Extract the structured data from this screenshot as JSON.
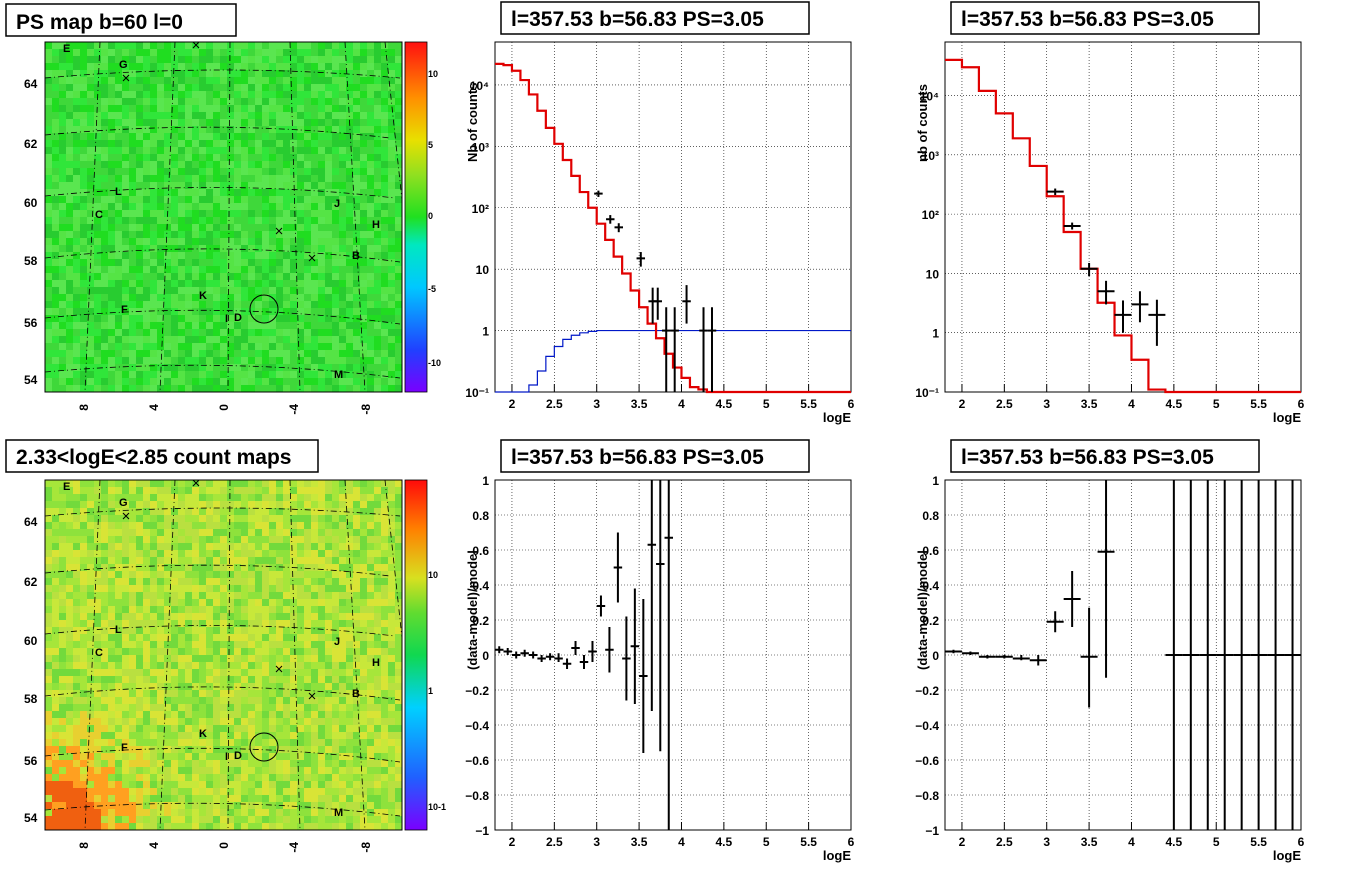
{
  "chart_data": [
    {
      "id": "ps-map",
      "type": "heatmap",
      "title": "PS map b=60 l=0",
      "x_tick_labels": [
        "8",
        "4",
        "0",
        "-4",
        "-8"
      ],
      "y_tick_labels": [
        "54",
        "56",
        "58",
        "60",
        "62",
        "64"
      ],
      "colorbar": {
        "labels": [
          "10",
          "5",
          "0",
          "-5",
          "-10"
        ],
        "range": [
          -12,
          12
        ]
      },
      "sources": [
        "E",
        "G",
        "L",
        "C",
        "J",
        "H",
        "B",
        "K",
        "F",
        "I",
        "D",
        "M"
      ],
      "palette": [
        "#20dd20",
        "#30e63a",
        "#3fd83a",
        "#55e445",
        "#28cc30",
        "#5ae650"
      ]
    },
    {
      "id": "count-map",
      "type": "heatmap",
      "title": "2.33<logE<2.85 count maps",
      "x_tick_labels": [
        "8",
        "4",
        "0",
        "-4",
        "-8"
      ],
      "y_tick_labels": [
        "54",
        "56",
        "58",
        "60",
        "62",
        "64"
      ],
      "colorbar": {
        "labels": [
          "10",
          "1",
          "10-1"
        ],
        "scale": "log"
      },
      "sources": [
        "E",
        "G",
        "L",
        "C",
        "J",
        "H",
        "B",
        "K",
        "F",
        "I",
        "D",
        "M"
      ],
      "palette": [
        "#a6e63a",
        "#8ee23c",
        "#c8e83a",
        "#b9e040",
        "#72da3c",
        "#d9e436"
      ]
    },
    {
      "id": "counts-left",
      "type": "line",
      "title": "l=357.53 b=56.83 PS=3.05",
      "xlabel": "logE",
      "ylabel": "Nb of counts",
      "xlim": [
        1.8,
        6
      ],
      "ylim": [
        0.1,
        50000
      ],
      "yscale": "log",
      "x_ticks": [
        "2",
        "2.5",
        "3",
        "3.5",
        "4",
        "4.5",
        "5",
        "5.5",
        "6"
      ],
      "y_ticks": [
        "10⁻¹",
        "1",
        "10",
        "10²",
        "10³",
        "10⁴"
      ],
      "grid": true,
      "model_color": "#e00000",
      "psf_color": "#0018c8",
      "model_edges": [
        1.8,
        1.9,
        2.0,
        2.1,
        2.2,
        2.3,
        2.4,
        2.5,
        2.6,
        2.7,
        2.8,
        2.9,
        3.0,
        3.1,
        3.2,
        3.3,
        3.4,
        3.5,
        3.6,
        3.7,
        3.8,
        3.9,
        4.0,
        4.1,
        4.2,
        4.3,
        6.0
      ],
      "model_values": [
        22000,
        21000,
        17000,
        12000,
        7000,
        3800,
        2000,
        1100,
        600,
        330,
        180,
        100,
        55,
        30,
        16,
        8.5,
        4.5,
        2.4,
        1.3,
        0.75,
        0.42,
        0.25,
        0.17,
        0.12,
        0.11,
        0.1
      ],
      "psf_edges": [
        1.8,
        2.2,
        2.3,
        2.4,
        2.5,
        2.6,
        2.7,
        2.8,
        2.9,
        3.0,
        3.1,
        6.0
      ],
      "psf_values": [
        0.1,
        0.13,
        0.22,
        0.38,
        0.55,
        0.72,
        0.84,
        0.92,
        0.97,
        1.0,
        1.0
      ],
      "data_points": [
        {
          "x": 3.02,
          "y": 170,
          "ylo": 150,
          "yhi": 190
        },
        {
          "x": 3.16,
          "y": 65,
          "ylo": 55,
          "yhi": 76
        },
        {
          "x": 3.26,
          "y": 48,
          "ylo": 40,
          "yhi": 56
        },
        {
          "x": 3.52,
          "y": 15,
          "ylo": 11,
          "yhi": 19
        },
        {
          "x": 3.66,
          "y": 3,
          "ylo": 1.3,
          "yhi": 5
        },
        {
          "x": 3.72,
          "y": 3,
          "ylo": 1.5,
          "yhi": 5
        },
        {
          "x": 3.82,
          "y": 1,
          "ylo": 0.1,
          "yhi": 2.4
        },
        {
          "x": 3.92,
          "y": 1,
          "ylo": 0.1,
          "yhi": 2.4
        },
        {
          "x": 4.06,
          "y": 3,
          "ylo": 1.3,
          "yhi": 5.5
        },
        {
          "x": 4.26,
          "y": 1,
          "ylo": 0.1,
          "yhi": 2.4
        },
        {
          "x": 4.36,
          "y": 1,
          "ylo": 0.1,
          "yhi": 2.4
        }
      ]
    },
    {
      "id": "counts-right",
      "type": "line",
      "title": "l=357.53 b=56.83 PS=3.05",
      "xlabel": "logE",
      "ylabel": "nb of counts",
      "xlim": [
        1.8,
        6
      ],
      "ylim": [
        0.1,
        80000
      ],
      "yscale": "log",
      "x_ticks": [
        "2",
        "2.5",
        "3",
        "3.5",
        "4",
        "4.5",
        "5",
        "5.5",
        "6"
      ],
      "y_ticks": [
        "10⁻¹",
        "1",
        "10",
        "10²",
        "10³",
        "10⁴"
      ],
      "grid": true,
      "model_color": "#e00000",
      "model_edges": [
        1.8,
        2.0,
        2.2,
        2.4,
        2.6,
        2.8,
        3.0,
        3.2,
        3.4,
        3.6,
        3.8,
        4.0,
        4.2,
        4.4,
        6.0
      ],
      "model_values": [
        40000,
        30000,
        12000,
        5000,
        1900,
        650,
        200,
        50,
        12,
        3.2,
        0.9,
        0.35,
        0.11,
        0.1
      ],
      "data_points": [
        {
          "x": 3.1,
          "y": 240,
          "ylo": 210,
          "yhi": 270
        },
        {
          "x": 3.3,
          "y": 63,
          "ylo": 55,
          "yhi": 72
        },
        {
          "x": 3.5,
          "y": 12,
          "ylo": 9,
          "yhi": 15
        },
        {
          "x": 3.7,
          "y": 5,
          "ylo": 3,
          "yhi": 7.5
        },
        {
          "x": 3.9,
          "y": 2,
          "ylo": 1,
          "yhi": 3.5
        },
        {
          "x": 4.1,
          "y": 3,
          "ylo": 1.5,
          "yhi": 5
        },
        {
          "x": 4.3,
          "y": 2,
          "ylo": 0.6,
          "yhi": 3.6
        }
      ]
    },
    {
      "id": "residual-left",
      "type": "scatter",
      "title": "l=357.53 b=56.83 PS=3.05",
      "xlabel": "logE",
      "ylabel": "(data-model)/model",
      "xlim": [
        1.8,
        6
      ],
      "ylim": [
        -1,
        1
      ],
      "x_ticks": [
        "2",
        "2.5",
        "3",
        "3.5",
        "4",
        "4.5",
        "5",
        "5.5",
        "6"
      ],
      "y_ticks": [
        "−1",
        "−0.8",
        "−0.6",
        "−0.4",
        "−0.2",
        "0",
        "0.2",
        "0.4",
        "0.6",
        "0.8",
        "1"
      ],
      "grid": true,
      "bin_halfwidth": 0.05,
      "data_points": [
        {
          "x": 1.85,
          "y": 0.03,
          "ylo": 0.01,
          "yhi": 0.05
        },
        {
          "x": 1.95,
          "y": 0.02,
          "ylo": 0.0,
          "yhi": 0.04
        },
        {
          "x": 2.05,
          "y": 0.0,
          "ylo": -0.02,
          "yhi": 0.02
        },
        {
          "x": 2.15,
          "y": 0.01,
          "ylo": -0.01,
          "yhi": 0.03
        },
        {
          "x": 2.25,
          "y": 0.0,
          "ylo": -0.02,
          "yhi": 0.02
        },
        {
          "x": 2.35,
          "y": -0.02,
          "ylo": -0.04,
          "yhi": 0.0
        },
        {
          "x": 2.45,
          "y": -0.01,
          "ylo": -0.03,
          "yhi": 0.01
        },
        {
          "x": 2.55,
          "y": -0.02,
          "ylo": -0.04,
          "yhi": 0.01
        },
        {
          "x": 2.65,
          "y": -0.05,
          "ylo": -0.08,
          "yhi": -0.02
        },
        {
          "x": 2.75,
          "y": 0.04,
          "ylo": 0.0,
          "yhi": 0.08
        },
        {
          "x": 2.85,
          "y": -0.04,
          "ylo": -0.08,
          "yhi": 0.0
        },
        {
          "x": 2.95,
          "y": 0.02,
          "ylo": -0.04,
          "yhi": 0.08
        },
        {
          "x": 3.05,
          "y": 0.28,
          "ylo": 0.22,
          "yhi": 0.34
        },
        {
          "x": 3.15,
          "y": 0.03,
          "ylo": -0.1,
          "yhi": 0.16
        },
        {
          "x": 3.25,
          "y": 0.5,
          "ylo": 0.3,
          "yhi": 0.7
        },
        {
          "x": 3.35,
          "y": -0.02,
          "ylo": -0.26,
          "yhi": 0.22
        },
        {
          "x": 3.45,
          "y": 0.05,
          "ylo": -0.28,
          "yhi": 0.38
        },
        {
          "x": 3.55,
          "y": -0.12,
          "ylo": -0.56,
          "yhi": 0.32
        },
        {
          "x": 3.65,
          "y": 0.63,
          "ylo": -0.32,
          "yhi": 1.0
        },
        {
          "x": 3.75,
          "y": 0.52,
          "ylo": -0.55,
          "yhi": 1.0
        },
        {
          "x": 3.85,
          "y": 0.67,
          "ylo": -1.0,
          "yhi": 1.0
        }
      ]
    },
    {
      "id": "residual-right",
      "type": "scatter",
      "title": "l=357.53 b=56.83 PS=3.05",
      "xlabel": "logE",
      "ylabel": "(data-model)/model",
      "xlim": [
        1.8,
        6
      ],
      "ylim": [
        -1,
        1
      ],
      "x_ticks": [
        "2",
        "2.5",
        "3",
        "3.5",
        "4",
        "4.5",
        "5",
        "5.5",
        "6"
      ],
      "y_ticks": [
        "−1",
        "−0.8",
        "−0.6",
        "−0.4",
        "−0.2",
        "0",
        "0.2",
        "0.4",
        "0.6",
        "0.8",
        "1"
      ],
      "grid": true,
      "bin_halfwidth": 0.1,
      "data_points": [
        {
          "x": 1.9,
          "y": 0.02,
          "ylo": 0.01,
          "yhi": 0.03
        },
        {
          "x": 2.1,
          "y": 0.01,
          "ylo": 0.0,
          "yhi": 0.02
        },
        {
          "x": 2.3,
          "y": -0.01,
          "ylo": -0.02,
          "yhi": 0.0
        },
        {
          "x": 2.5,
          "y": -0.01,
          "ylo": -0.02,
          "yhi": 0.0
        },
        {
          "x": 2.7,
          "y": -0.02,
          "ylo": -0.03,
          "yhi": 0.0
        },
        {
          "x": 2.9,
          "y": -0.03,
          "ylo": -0.06,
          "yhi": 0.0
        },
        {
          "x": 3.1,
          "y": 0.19,
          "ylo": 0.13,
          "yhi": 0.25
        },
        {
          "x": 3.3,
          "y": 0.32,
          "ylo": 0.16,
          "yhi": 0.48
        },
        {
          "x": 3.5,
          "y": -0.01,
          "ylo": -0.3,
          "yhi": 0.27
        },
        {
          "x": 3.7,
          "y": 0.59,
          "ylo": -0.13,
          "yhi": 1.0
        },
        {
          "x": 4.5,
          "y": 0,
          "ylo": -1.0,
          "yhi": 1.0
        },
        {
          "x": 4.7,
          "y": 0,
          "ylo": -1.0,
          "yhi": 1.0
        },
        {
          "x": 4.9,
          "y": 0,
          "ylo": -1.0,
          "yhi": 1.0
        },
        {
          "x": 5.1,
          "y": 0,
          "ylo": -1.0,
          "yhi": 1.0
        },
        {
          "x": 5.3,
          "y": 0,
          "ylo": -1.0,
          "yhi": 1.0
        },
        {
          "x": 5.5,
          "y": 0,
          "ylo": -1.0,
          "yhi": 1.0
        },
        {
          "x": 5.7,
          "y": 0,
          "ylo": -1.0,
          "yhi": 1.0
        },
        {
          "x": 5.9,
          "y": 0,
          "ylo": -1.0,
          "yhi": 1.0
        }
      ]
    }
  ]
}
